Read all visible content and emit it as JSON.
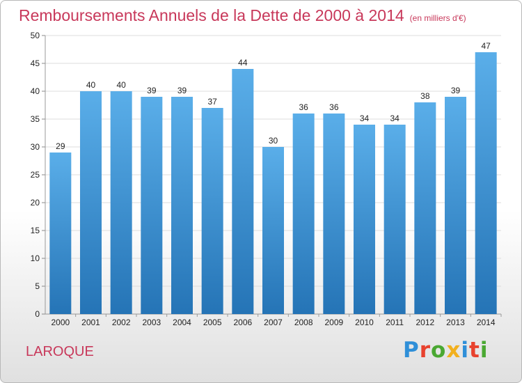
{
  "header": {
    "title": "Remboursements Annuels de la Dette de 2000 à 2014",
    "unit": "(en milliers d'€)"
  },
  "footer": {
    "commune": "LAROQUE",
    "brand_letters": [
      "P",
      "r",
      "o",
      "x",
      "i",
      "t",
      "i"
    ]
  },
  "chart_data": {
    "type": "bar",
    "title": "Remboursements Annuels de la Dette de 2000 à 2014",
    "subtitle": "(en milliers d'€)",
    "categories": [
      "2000",
      "2001",
      "2002",
      "2003",
      "2004",
      "2005",
      "2006",
      "2007",
      "2008",
      "2009",
      "2010",
      "2011",
      "2012",
      "2013",
      "2014"
    ],
    "values": [
      29,
      40,
      40,
      39,
      39,
      37,
      44,
      30,
      36,
      36,
      34,
      34,
      38,
      39,
      47
    ],
    "yticks": [
      0,
      5,
      10,
      15,
      20,
      25,
      30,
      35,
      40,
      45,
      50
    ],
    "ylim": [
      0,
      50
    ],
    "grid": true,
    "bar_color_top": "#5aaee9",
    "bar_color_bottom": "#2574b6"
  }
}
